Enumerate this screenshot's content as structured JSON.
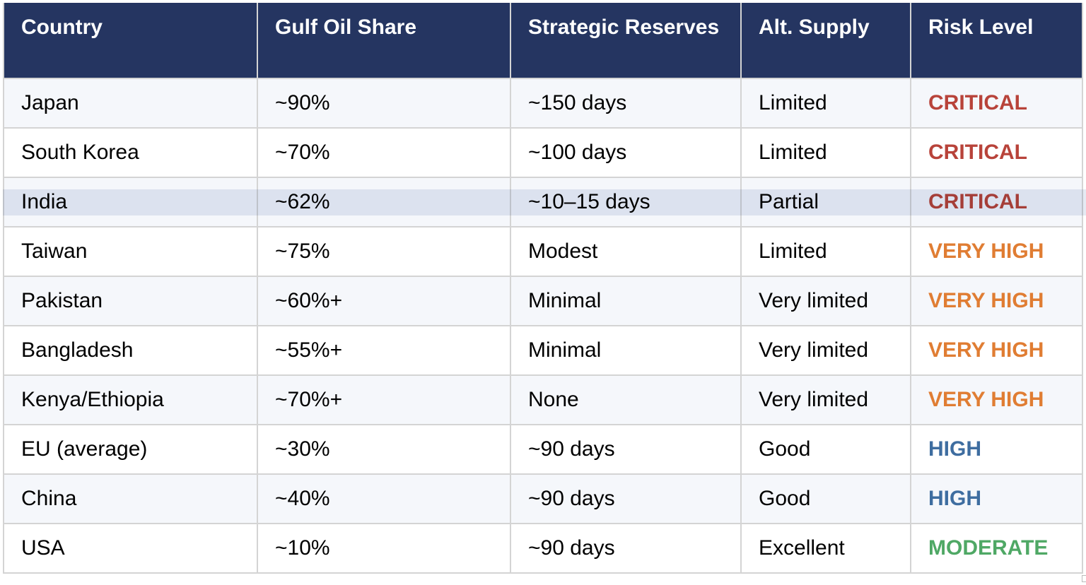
{
  "table": {
    "headers": [
      "Country",
      "Gulf Oil Share",
      "Strategic Reserves",
      "Alt. Supply",
      "Risk Level"
    ],
    "rows": [
      {
        "country": "Japan",
        "share": "~90%",
        "reserves": "~150 days",
        "alt": "Limited",
        "risk": "CRITICAL"
      },
      {
        "country": "South Korea",
        "share": "~70%",
        "reserves": "~100 days",
        "alt": "Limited",
        "risk": "CRITICAL"
      },
      {
        "country": "India",
        "share": "~62%",
        "reserves": "~10–15 days",
        "alt": "Partial",
        "risk": "CRITICAL"
      },
      {
        "country": "Taiwan",
        "share": "~75%",
        "reserves": "Modest",
        "alt": "Limited",
        "risk": "VERY HIGH"
      },
      {
        "country": "Pakistan",
        "share": "~60%+",
        "reserves": "Minimal",
        "alt": "Very limited",
        "risk": "VERY HIGH"
      },
      {
        "country": "Bangladesh",
        "share": "~55%+",
        "reserves": "Minimal",
        "alt": "Very limited",
        "risk": "VERY HIGH"
      },
      {
        "country": "Kenya/Ethiopia",
        "share": "~70%+",
        "reserves": "None",
        "alt": "Very limited",
        "risk": "VERY HIGH"
      },
      {
        "country": "EU (average)",
        "share": "~30%",
        "reserves": "~90 days",
        "alt": "Good",
        "risk": "HIGH"
      },
      {
        "country": "China",
        "share": "~40%",
        "reserves": "~90 days",
        "alt": "Good",
        "risk": "HIGH"
      },
      {
        "country": "USA",
        "share": "~10%",
        "reserves": "~90 days",
        "alt": "Excellent",
        "risk": "MODERATE"
      }
    ]
  },
  "colors": {
    "header_bg": "#253561",
    "CRITICAL": "#b8433a",
    "VERY HIGH": "#e07d33",
    "HIGH": "#3e6da0",
    "MODERATE": "#4fa865",
    "row_highlight": "#e5eaf3"
  }
}
